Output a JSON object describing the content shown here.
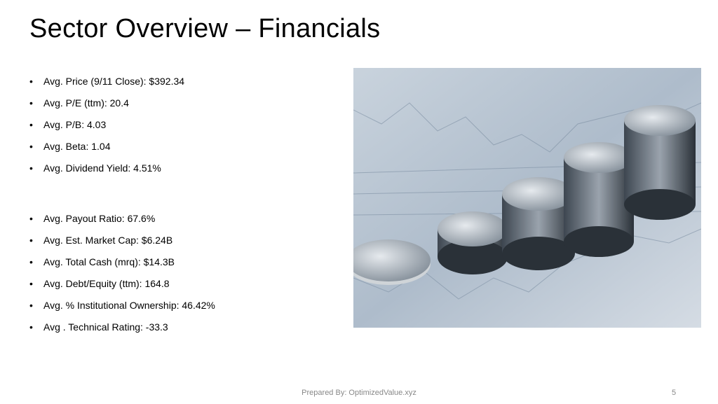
{
  "header": {
    "title": "Sector Overview – Financials"
  },
  "bullets": {
    "groups": [
      [
        "Avg. Price (9/11 Close): $392.34",
        "Avg. P/E (ttm): 20.4",
        "Avg. P/B: 4.03",
        "Avg. Beta: 1.04",
        "Avg. Dividend Yield: 4.51%"
      ],
      [
        "Avg. Payout Ratio: 67.6%",
        "Avg. Est. Market Cap: $6.24B",
        "Avg. Total Cash (mrq): $14.3B",
        "Avg. Debt/Equity (ttm): 164.8",
        "Avg. % Institutional Ownership: 46.42%",
        "Avg . Technical Rating: -33.3"
      ]
    ]
  },
  "footer": {
    "text": "Prepared By: OptimizedValue.xyz",
    "page_number": "5"
  }
}
